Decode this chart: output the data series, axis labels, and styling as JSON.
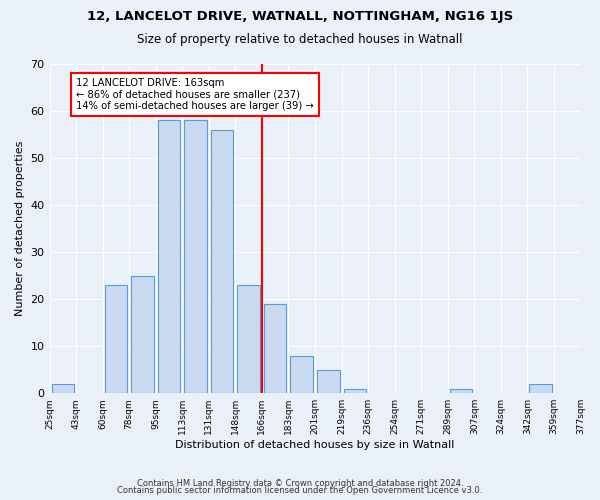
{
  "title1": "12, LANCELOT DRIVE, WATNALL, NOTTINGHAM, NG16 1JS",
  "title2": "Size of property relative to detached houses in Watnall",
  "xlabel": "Distribution of detached houses by size in Watnall",
  "ylabel": "Number of detached properties",
  "bin_labels": [
    "25sqm",
    "43sqm",
    "60sqm",
    "78sqm",
    "95sqm",
    "113sqm",
    "131sqm",
    "148sqm",
    "166sqm",
    "183sqm",
    "201sqm",
    "219sqm",
    "236sqm",
    "254sqm",
    "271sqm",
    "289sqm",
    "307sqm",
    "324sqm",
    "342sqm",
    "359sqm",
    "377sqm"
  ],
  "bar_heights": [
    2,
    0,
    23,
    25,
    58,
    58,
    56,
    23,
    19,
    8,
    5,
    1,
    0,
    0,
    0,
    1,
    0,
    0,
    2,
    0
  ],
  "bar_color": "#c9d9f0",
  "bar_edge_color": "#5b9bd5",
  "red_line_index": 8,
  "annotation_text": "12 LANCELOT DRIVE: 163sqm\n← 86% of detached houses are smaller (237)\n14% of semi-detached houses are larger (39) →",
  "annotation_box_color": "white",
  "annotation_border_color": "red",
  "ylim": [
    0,
    70
  ],
  "yticks": [
    0,
    10,
    20,
    30,
    40,
    50,
    60,
    70
  ],
  "footer1": "Contains HM Land Registry data © Crown copyright and database right 2024.",
  "footer2": "Contains public sector information licensed under the Open Government Licence v3.0.",
  "bg_color": "#eaf0f8",
  "plot_bg_color": "#eaf0f8"
}
